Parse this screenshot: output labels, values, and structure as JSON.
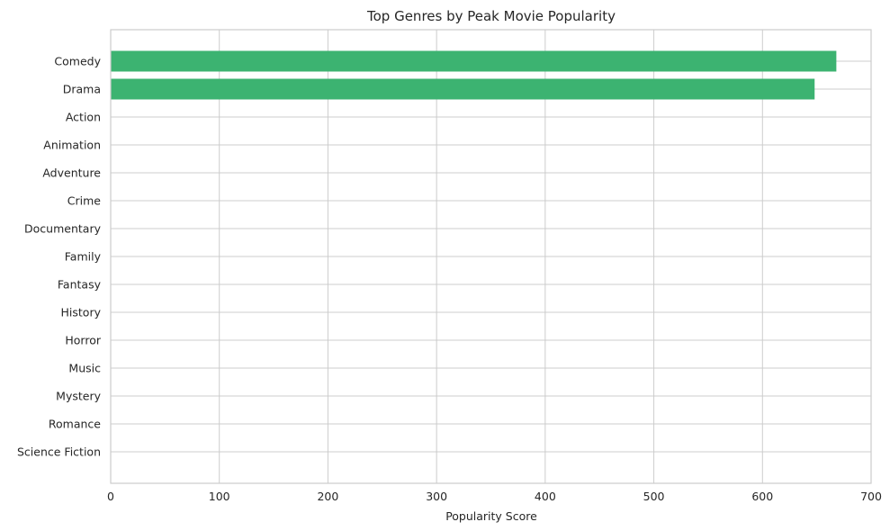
{
  "chart_data": {
    "type": "bar",
    "orientation": "horizontal",
    "title": "Top Genres by Peak Movie Popularity",
    "xlabel": "Popularity Score",
    "ylabel": "",
    "categories": [
      "Comedy",
      "Drama",
      "Action",
      "Animation",
      "Adventure",
      "Crime",
      "Documentary",
      "Family",
      "Fantasy",
      "History",
      "Horror",
      "Music",
      "Mystery",
      "Romance",
      "Science Fiction"
    ],
    "values": [
      668,
      648,
      0,
      0,
      0,
      0,
      0,
      0,
      0,
      0,
      0,
      0,
      0,
      0,
      0
    ],
    "xlim": [
      0,
      700
    ],
    "xticks": [
      0,
      100,
      200,
      300,
      400,
      500,
      600,
      700
    ],
    "grid": true,
    "bar_color": "#3cb371"
  }
}
